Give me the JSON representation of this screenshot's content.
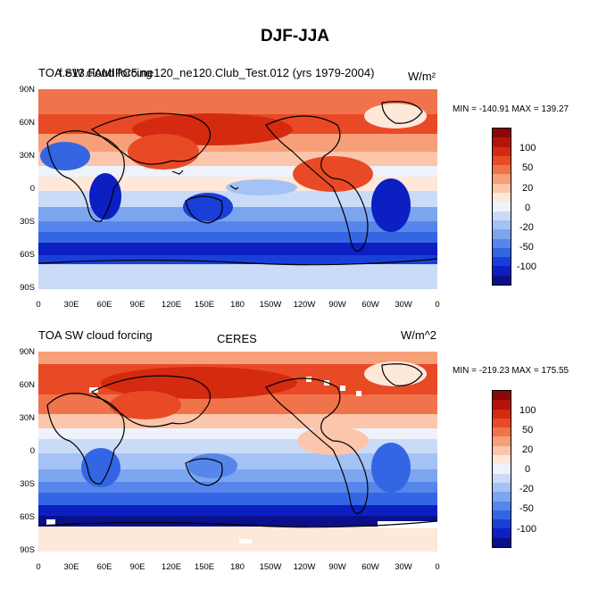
{
  "main_title": "DJF-JJA",
  "colors": {
    "palette": [
      "#0a0f8a",
      "#0b1fc2",
      "#1a3fd8",
      "#3466e3",
      "#5686ea",
      "#7ca5f0",
      "#a4c2f5",
      "#cadbf8",
      "#eef3fb",
      "#fde8da",
      "#fbc6ab",
      "#f79f79",
      "#f1734b",
      "#e84a25",
      "#d42a10",
      "#b3150b",
      "#8c0707"
    ],
    "land_outline": "#000000"
  },
  "panels": [
    {
      "left_title": "TOA SW cloud forcing",
      "center_title": "f.e13.FAMIPC5.ne120_ne120.Club_Test.012 (yrs 1979-2004)",
      "right_title": "W/m²",
      "min_max": "MIN = -140.91 MAX = 139.27",
      "colorbar_labels": [
        "100",
        "50",
        "20",
        "0",
        "-20",
        "-50",
        "-100"
      ],
      "lat_ticks": [
        "90N",
        "60N",
        "30N",
        "0",
        "30S",
        "60S",
        "90S"
      ],
      "lon_ticks": [
        "0",
        "30E",
        "60E",
        "90E",
        "120E",
        "150E",
        "180",
        "150W",
        "120W",
        "90W",
        "60W",
        "30W",
        "0"
      ]
    },
    {
      "left_title": "TOA SW cloud forcing",
      "center_title": "CERES",
      "right_title": "W/m^2",
      "min_max": "MIN = -219.23 MAX = 175.55",
      "colorbar_labels": [
        "100",
        "50",
        "20",
        "0",
        "-20",
        "-50",
        "-100"
      ],
      "lat_ticks": [
        "90N",
        "60N",
        "30N",
        "0",
        "30S",
        "60S",
        "90S"
      ],
      "lon_ticks": [
        "0",
        "30E",
        "60E",
        "90E",
        "120E",
        "150E",
        "180",
        "150W",
        "120W",
        "90W",
        "60W",
        "30W",
        "0"
      ]
    }
  ]
}
